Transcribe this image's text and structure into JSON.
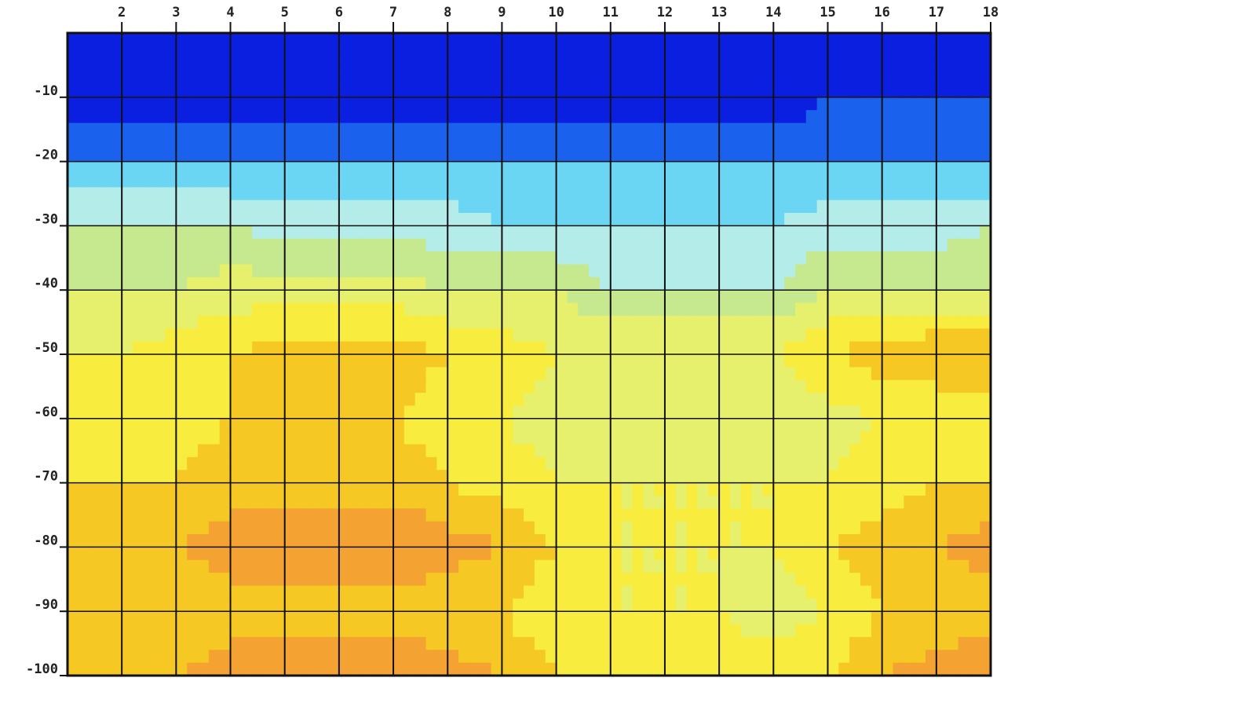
{
  "chart_data": {
    "type": "contour",
    "x": [
      1,
      2,
      3,
      4,
      5,
      6,
      7,
      8,
      9,
      10,
      11,
      12,
      13,
      14,
      15,
      16,
      17,
      18
    ],
    "y": [
      0,
      -10,
      -20,
      -30,
      -40,
      -50,
      -60,
      -70,
      -80,
      -90,
      -100
    ],
    "z": [
      [
        0,
        0,
        0,
        0,
        0,
        0,
        0,
        0,
        0,
        0,
        0,
        0,
        0,
        0,
        0,
        0,
        0,
        0
      ],
      [
        0,
        0,
        0,
        0,
        0,
        0,
        0,
        0,
        0,
        0,
        0,
        0,
        0,
        0,
        1,
        1,
        1,
        1
      ],
      [
        2,
        2,
        2,
        2,
        2,
        2,
        2,
        2,
        2,
        2,
        2,
        2,
        2,
        2,
        2,
        2,
        2,
        2
      ],
      [
        4,
        4,
        4,
        4,
        3.5,
        3.5,
        3.5,
        3.5,
        3,
        3,
        3,
        3,
        3,
        3,
        3.5,
        3.5,
        3.5,
        4
      ],
      [
        5,
        5,
        5,
        5.5,
        5.5,
        5.5,
        5.5,
        5,
        5,
        5,
        4,
        4,
        4,
        4,
        5,
        5,
        5,
        5
      ],
      [
        6,
        6,
        6.5,
        7,
        7.5,
        7.5,
        7.5,
        7,
        6.5,
        6,
        6,
        6,
        6,
        6,
        7,
        7.5,
        8,
        8
      ],
      [
        6,
        6.5,
        6.5,
        7,
        7,
        7,
        7,
        6.5,
        6,
        5.5,
        5.5,
        5,
        5,
        5,
        5.5,
        6,
        6,
        6
      ],
      [
        7,
        7,
        7,
        7.5,
        7.5,
        7.5,
        7.5,
        7,
        6.5,
        6,
        6,
        6,
        6,
        6,
        6,
        6.5,
        7,
        7
      ],
      [
        7.5,
        7.5,
        8,
        8.5,
        9,
        9,
        9,
        8.5,
        8,
        7,
        6,
        6,
        6,
        6,
        7,
        7.5,
        8,
        8.5
      ],
      [
        7,
        7,
        7,
        7.5,
        7.5,
        7.5,
        7.5,
        7,
        7,
        6,
        6,
        6,
        6,
        5.5,
        6,
        7,
        7,
        7.5
      ],
      [
        8,
        8,
        8,
        8.5,
        9,
        9,
        9,
        8.5,
        8,
        7,
        6.5,
        6.5,
        6.5,
        6.5,
        7,
        8,
        8.5,
        9
      ]
    ],
    "xlim": [
      1,
      18
    ],
    "ylim": [
      -100,
      0
    ],
    "xticks": [
      2,
      3,
      4,
      5,
      6,
      7,
      8,
      9,
      10,
      11,
      12,
      13,
      14,
      15,
      16,
      17,
      18
    ],
    "yticks": [
      -10,
      -20,
      -30,
      -40,
      -50,
      -60,
      -70,
      -80,
      -90,
      -100
    ],
    "grid": true,
    "colorscale": {
      "bounds": [
        0,
        1,
        2,
        3,
        4,
        5,
        6,
        7,
        8,
        9
      ],
      "colors": [
        "#0b1fe0",
        "#1a62ee",
        "#6ad6f4",
        "#b4ecea",
        "#c6e88e",
        "#e6f06c",
        "#f8ec3e",
        "#f6c824",
        "#f4a232",
        "#ec7a32"
      ]
    }
  }
}
